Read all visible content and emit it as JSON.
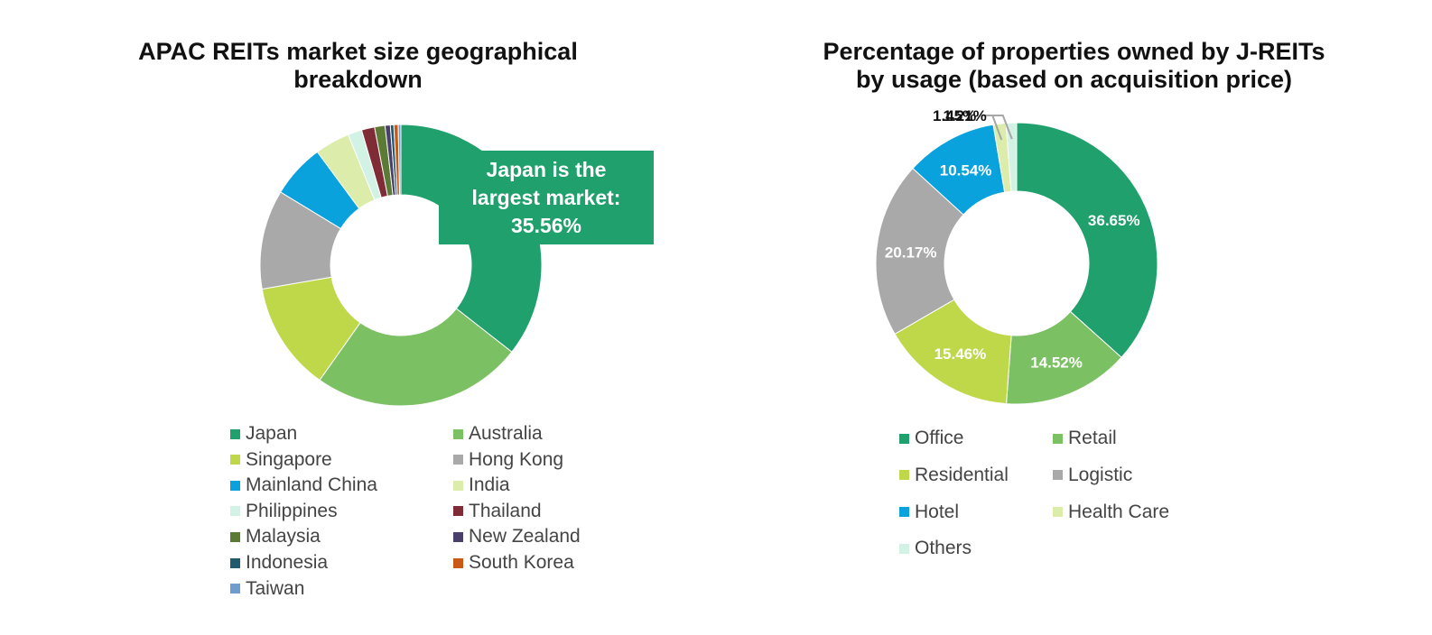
{
  "chart_data": [
    {
      "type": "pie",
      "title_lines": [
        "APAC REITs market size geographical",
        "breakdown"
      ],
      "categories": [
        "Japan",
        "Australia",
        "Singapore",
        "Hong Kong",
        "Mainland China",
        "India",
        "Philippines",
        "Thailand",
        "Malaysia",
        "New Zealand",
        "Indonesia",
        "South Korea",
        "Taiwan"
      ],
      "values": [
        35.56,
        24.2,
        12.5,
        11.4,
        6.2,
        4.0,
        1.6,
        1.5,
        1.2,
        0.6,
        0.4,
        0.5,
        0.3
      ],
      "colors": [
        "#1fa06c",
        "#7cc064",
        "#bfd84a",
        "#a9a9a9",
        "#0aa2dc",
        "#dcecaa",
        "#d2f2e6",
        "#7f2c36",
        "#5b7a34",
        "#4a3f6b",
        "#1f5a6e",
        "#c85a16",
        "#6f9ccf"
      ],
      "legend_position": "bottom",
      "annotation": {
        "lines": [
          "Japan is the",
          "largest market:",
          "35.56%"
        ]
      }
    },
    {
      "type": "pie",
      "title_lines": [
        "Percentage of properties owned by J-REITs",
        "by usage (based on acquisition price)"
      ],
      "categories": [
        "Office",
        "Retail",
        "Residential",
        "Logistic",
        "Hotel",
        "Health Care",
        "Others"
      ],
      "values": [
        36.65,
        14.52,
        15.46,
        20.17,
        10.54,
        1.45,
        1.21
      ],
      "labels": [
        "36.65%",
        "14.52%",
        "15.46%",
        "20.17%",
        "10.54%",
        "1.45%",
        "1.21%"
      ],
      "colors": [
        "#1fa06c",
        "#7cc064",
        "#bfd84a",
        "#a9a9a9",
        "#0aa2dc",
        "#dcecaa",
        "#d2f2e6"
      ],
      "legend_position": "bottom"
    }
  ]
}
